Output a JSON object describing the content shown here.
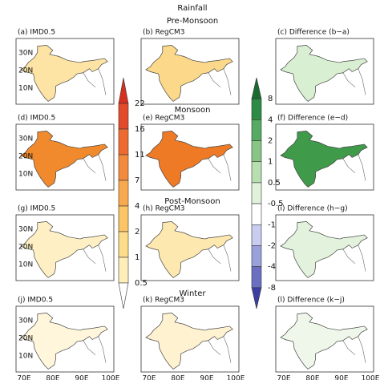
{
  "title": "Rainfall",
  "rows": [
    {
      "season": "Pre-Monsoon",
      "panels": [
        {
          "label": "(a) IMD0.5",
          "fill": "#fde3a4"
        },
        {
          "label": "(b) RegCM3",
          "fill": "#fcd88a"
        },
        {
          "label": "(c) Difference (b−a)",
          "fill": "#d8efd2"
        }
      ]
    },
    {
      "season": "Monsoon",
      "panels": [
        {
          "label": "(d) IMD0.5",
          "fill": "#f08a2c"
        },
        {
          "label": "(e) RegCM3",
          "fill": "#ee7a26"
        },
        {
          "label": "(f) Difference (e−d)",
          "fill": "#3f9a4a"
        }
      ]
    },
    {
      "season": "Post-Monsoon",
      "panels": [
        {
          "label": "(g) IMD0.5",
          "fill": "#fef0c4"
        },
        {
          "label": "(h) RegCM3",
          "fill": "#fde8b0"
        },
        {
          "label": "(i) Difference (h−g)",
          "fill": "#e2f2dc"
        }
      ]
    },
    {
      "season": "Winter",
      "panels": [
        {
          "label": "(j) IMD0.5",
          "fill": "#fff6dc"
        },
        {
          "label": "(k) RegCM3",
          "fill": "#fef2d0"
        },
        {
          "label": "(l) Difference (k−j)",
          "fill": "#eef7ea"
        }
      ]
    }
  ],
  "lat_ticks": [
    "30N",
    "20N",
    "10N"
  ],
  "lon_ticks": [
    "70E",
    "80E",
    "90E",
    "100E"
  ],
  "colorbars": [
    {
      "labels": [
        22,
        16,
        11,
        7,
        4,
        2,
        1,
        0.5
      ],
      "colors": [
        "#d7301f",
        "#e34a2a",
        "#ef6a30",
        "#f48b3c",
        "#f8a94e",
        "#fbc565",
        "#fddc8a",
        "#feeeb8",
        "#ffffff"
      ]
    },
    {
      "labels": [
        8,
        4,
        2,
        1,
        0.5,
        -0.5,
        -1,
        -2,
        -4,
        -8
      ],
      "colors": [
        "#1a6b30",
        "#2e8b45",
        "#55ab62",
        "#86c584",
        "#b9dfb0",
        "#e1f2dc",
        "#ffffff",
        "#c9cdf0",
        "#9aa0dc",
        "#6a6fc4",
        "#3c3fa0"
      ]
    }
  ]
}
